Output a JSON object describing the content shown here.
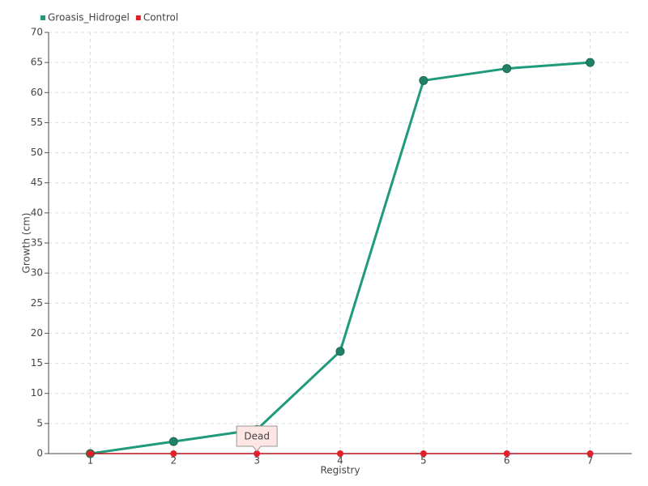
{
  "chart_data": {
    "type": "line",
    "x_label": "Registry",
    "y_label": "Growth (cm)",
    "x": [
      1,
      2,
      3,
      4,
      5,
      6,
      7
    ],
    "series": [
      {
        "name": "Groasis_Hidrogel",
        "color": "#1f9b7c",
        "values": [
          0,
          2,
          4,
          17,
          62,
          64,
          65
        ]
      },
      {
        "name": "Control",
        "color": "#e3202a",
        "values": [
          0,
          0,
          0,
          0,
          0,
          0,
          0
        ]
      }
    ],
    "xlim": [
      0.5,
      7.5
    ],
    "xticks": [
      1,
      2,
      3,
      4,
      5,
      6,
      7
    ],
    "ylim": [
      0,
      70
    ],
    "yticks": [
      0,
      5,
      10,
      15,
      20,
      25,
      30,
      35,
      40,
      45,
      50,
      55,
      60,
      65,
      70
    ],
    "grid": true,
    "legend": "top-left",
    "annotations": [
      {
        "text": "Dead",
        "x": 3,
        "y": 0
      }
    ]
  }
}
